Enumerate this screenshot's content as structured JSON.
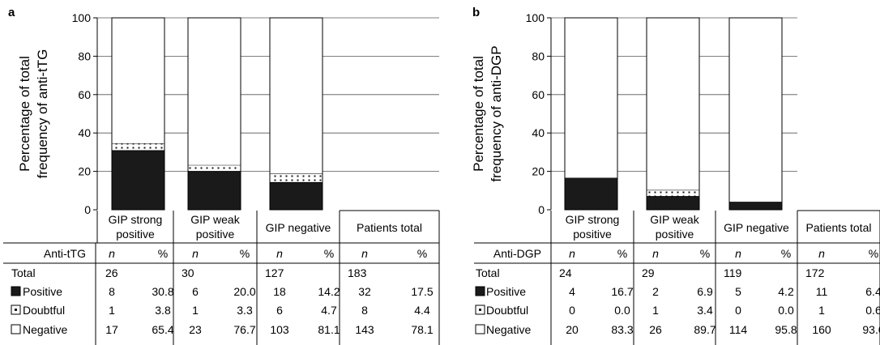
{
  "colors": {
    "positive": "#1a1a1a",
    "doubtful_dots": "#1a1a1a",
    "negative": "#ffffff",
    "stroke": "#000000",
    "grid": "#555555"
  },
  "icons": {
    "positive": "filled-square-icon",
    "doubtful": "dotted-square-icon",
    "negative": "empty-square-icon"
  },
  "chart_data": [
    {
      "panel_label": "a",
      "type": "bar",
      "stacked": true,
      "ylabel_lines": [
        "Percentage of total",
        "frequency of anti-tTG"
      ],
      "ylim": [
        0,
        100
      ],
      "yticks": [
        0,
        20,
        40,
        60,
        80,
        100
      ],
      "grid": true,
      "categories": [
        {
          "lines": [
            "GIP strong",
            "positive"
          ]
        },
        {
          "lines": [
            "GIP weak",
            "positive"
          ]
        },
        {
          "lines": [
            "GIP negative"
          ]
        }
      ],
      "series": [
        {
          "name": "Positive",
          "values": [
            30.8,
            20.0,
            14.2
          ]
        },
        {
          "name": "Doubtful",
          "values": [
            3.8,
            3.3,
            4.7
          ]
        },
        {
          "name": "Negative",
          "values": [
            65.4,
            76.7,
            81.1
          ]
        }
      ],
      "table": {
        "group_headers": [
          "GIP strong positive",
          "GIP weak positive",
          "GIP negative",
          "Patients total"
        ],
        "row_header": "Anti-tTG",
        "col_n": "n",
        "col_pct": "%",
        "rows": [
          {
            "label": "Total",
            "icon": "",
            "cells": [
              "26",
              "",
              "30",
              "",
              "127",
              "",
              "183",
              ""
            ]
          },
          {
            "label": "Positive",
            "icon": "positive",
            "cells": [
              "8",
              "30.8",
              "6",
              "20.0",
              "18",
              "14.2",
              "32",
              "17.5"
            ]
          },
          {
            "label": "Doubtful",
            "icon": "doubtful",
            "cells": [
              "1",
              "3.8",
              "1",
              "3.3",
              "6",
              "4.7",
              "8",
              "4.4"
            ]
          },
          {
            "label": "Negative",
            "icon": "negative",
            "cells": [
              "17",
              "65.4",
              "23",
              "76.7",
              "103",
              "81.1",
              "143",
              "78.1"
            ]
          }
        ]
      }
    },
    {
      "panel_label": "b",
      "type": "bar",
      "stacked": true,
      "ylabel_lines": [
        "Percentage of total",
        "frequency of anti-DGP"
      ],
      "ylim": [
        0,
        100
      ],
      "yticks": [
        0,
        20,
        40,
        60,
        80,
        100
      ],
      "grid": true,
      "categories": [
        {
          "lines": [
            "GIP strong",
            "positive"
          ]
        },
        {
          "lines": [
            "GIP weak",
            "positive"
          ]
        },
        {
          "lines": [
            "GIP negative"
          ]
        }
      ],
      "series": [
        {
          "name": "Positive",
          "values": [
            16.7,
            6.9,
            4.2
          ]
        },
        {
          "name": "Doubtful",
          "values": [
            0.0,
            3.4,
            0.0
          ]
        },
        {
          "name": "Negative",
          "values": [
            83.3,
            89.7,
            95.8
          ]
        }
      ],
      "table": {
        "group_headers": [
          "GIP strong positive",
          "GIP weak positive",
          "GIP negative",
          "Patients total"
        ],
        "row_header": "Anti-DGP",
        "col_n": "n",
        "col_pct": "%",
        "rows": [
          {
            "label": "Total",
            "icon": "",
            "cells": [
              "24",
              "",
              "29",
              "",
              "119",
              "",
              "172",
              ""
            ]
          },
          {
            "label": "Positive",
            "icon": "positive",
            "cells": [
              "4",
              "16.7",
              "2",
              "6.9",
              "5",
              "4.2",
              "11",
              "6.4"
            ]
          },
          {
            "label": "Doubtful",
            "icon": "doubtful",
            "cells": [
              "0",
              "0.0",
              "1",
              "3.4",
              "0",
              "0.0",
              "1",
              "0.6"
            ]
          },
          {
            "label": "Negative",
            "icon": "negative",
            "cells": [
              "20",
              "83.3",
              "26",
              "89.7",
              "114",
              "95.8",
              "160",
              "93.0"
            ]
          }
        ]
      }
    }
  ]
}
